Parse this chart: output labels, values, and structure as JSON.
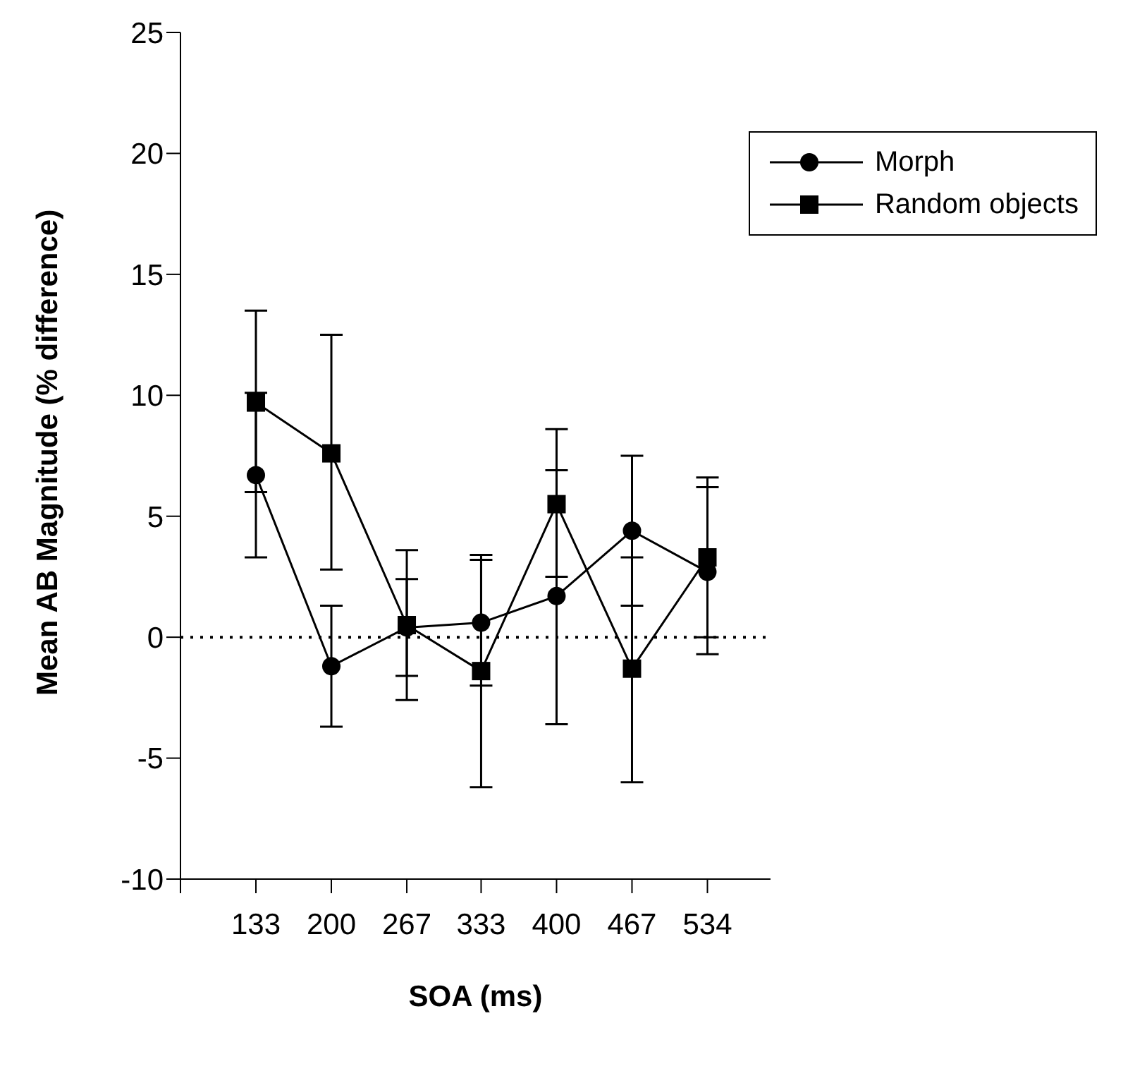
{
  "chart_data": {
    "type": "line",
    "xlabel": "SOA (ms)",
    "ylabel": "Mean AB Magnitude (% difference)",
    "x": [
      133,
      200,
      267,
      333,
      400,
      467,
      534
    ],
    "xlim": [
      66,
      590
    ],
    "xticks": [
      {
        "value": 66,
        "label": null
      },
      133,
      200,
      267,
      333,
      400,
      467,
      534
    ],
    "ylim": [
      -10,
      25
    ],
    "yticks": [
      -10,
      -5,
      0,
      5,
      10,
      15,
      20,
      25
    ],
    "series": [
      {
        "name": "Morph",
        "color": "#000000",
        "marker": "circle",
        "values": [
          6.7,
          -1.2,
          0.4,
          0.6,
          1.7,
          4.4,
          2.7
        ],
        "errors": [
          [
            3.3,
            10.1
          ],
          [
            -3.7,
            1.3
          ],
          [
            -1.6,
            2.4
          ],
          [
            -2.0,
            3.2
          ],
          [
            -3.6,
            6.9
          ],
          [
            1.3,
            7.5
          ],
          [
            -0.7,
            6.2
          ]
        ]
      },
      {
        "name": "Random objects",
        "color": "#000000",
        "marker": "square",
        "values": [
          9.7,
          7.6,
          0.5,
          -1.4,
          5.5,
          -1.3,
          3.3
        ],
        "errors": [
          [
            6.0,
            13.5
          ],
          [
            2.8,
            12.5
          ],
          [
            -2.6,
            3.6
          ],
          [
            -6.2,
            3.4
          ],
          [
            2.5,
            8.6
          ],
          [
            -6.0,
            3.3
          ],
          [
            0.0,
            6.6
          ]
        ]
      }
    ],
    "ref_lines": [
      {
        "axis": "y",
        "value": 0,
        "label": null,
        "color": "#000000",
        "line_style": "dotted"
      }
    ],
    "legend": "top right",
    "grid": false
  }
}
